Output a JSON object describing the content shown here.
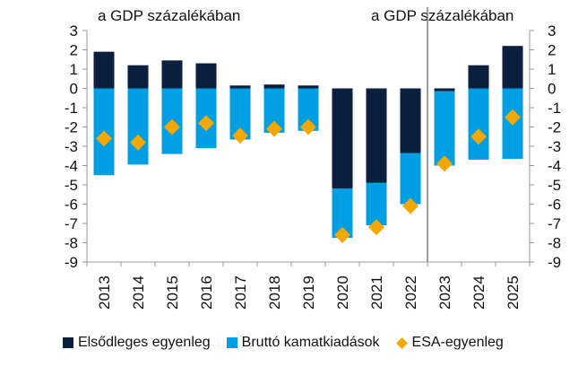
{
  "chart_data": {
    "type": "bar",
    "stacked": true,
    "unit_label_left": "a GDP százalékában",
    "unit_label_right": "a GDP százalékában",
    "categories": [
      "2013",
      "2014",
      "2015",
      "2016",
      "2017",
      "2018",
      "2019",
      "2020",
      "2021",
      "2022",
      "2023",
      "2024",
      "2025"
    ],
    "ylim": [
      -9,
      3
    ],
    "yticks": [
      3,
      2,
      1,
      0,
      -1,
      -2,
      -3,
      -4,
      -5,
      -6,
      -7,
      -8,
      -9
    ],
    "forecast_from": "2023",
    "series": [
      {
        "name": "Elsődleges egyenleg",
        "kind": "bar",
        "color": "#0b1f3f",
        "values": [
          1.9,
          1.2,
          1.45,
          1.3,
          0.15,
          0.2,
          0.15,
          -5.2,
          -4.9,
          -3.35,
          -0.15,
          1.2,
          2.2
        ]
      },
      {
        "name": "Bruttó kamatkiadások",
        "kind": "bar",
        "color": "#009fe3",
        "values": [
          -4.5,
          -3.95,
          -3.4,
          -3.1,
          -2.65,
          -2.3,
          -2.2,
          -2.55,
          -2.2,
          -2.65,
          -3.85,
          -3.7,
          -3.65
        ]
      },
      {
        "name": "ESA-egyenleg",
        "kind": "marker",
        "color": "#f5a800",
        "values": [
          -2.6,
          -2.8,
          -2.0,
          -1.8,
          -2.45,
          -2.1,
          -2.0,
          -7.6,
          -7.2,
          -6.1,
          -3.9,
          -2.5,
          -1.5
        ]
      }
    ],
    "legend_position": "bottom",
    "grid": false
  }
}
